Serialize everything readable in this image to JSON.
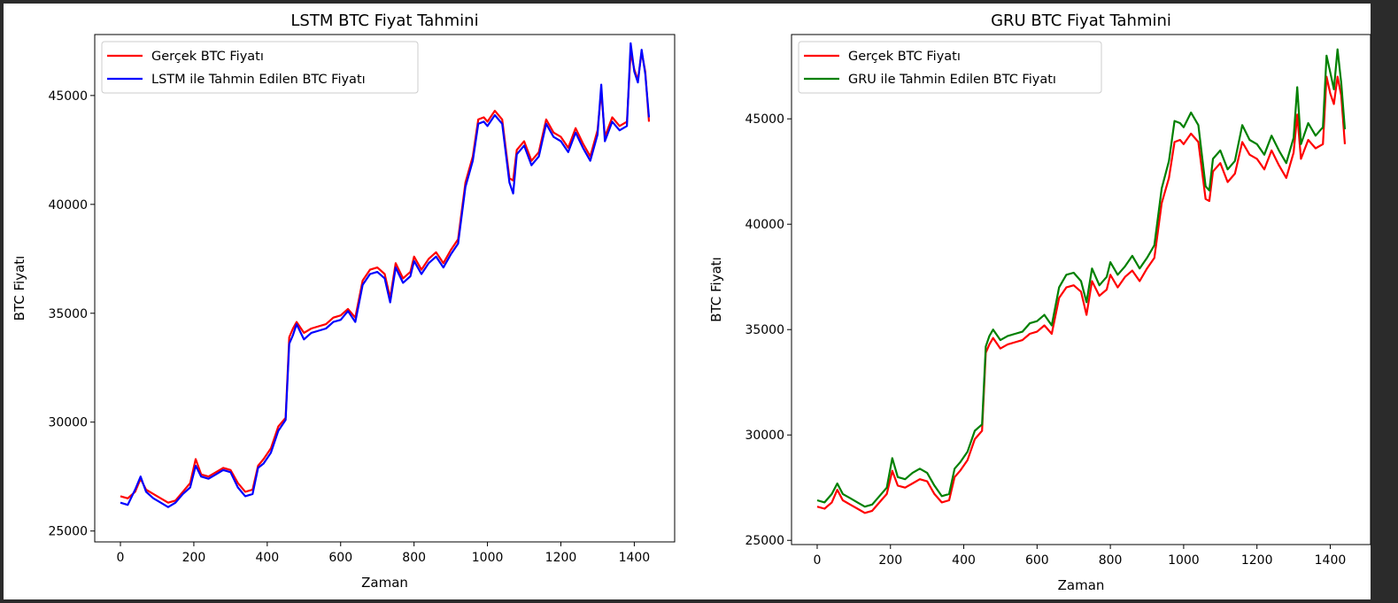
{
  "colors": {
    "actual": "#ff0000",
    "lstm": "#0000ff",
    "gru": "#008000"
  },
  "chart_data": [
    {
      "type": "line",
      "title": "LSTM BTC Fiyat Tahmini",
      "xlabel": "Zaman",
      "ylabel": "BTC Fiyatı",
      "xlim": [
        -70,
        1510
      ],
      "ylim": [
        24500,
        47800
      ],
      "xticks": [
        0,
        200,
        400,
        600,
        800,
        1000,
        1200,
        1400
      ],
      "yticks": [
        25000,
        30000,
        35000,
        40000,
        45000
      ],
      "legend": "upper-left",
      "series": [
        {
          "name": "Gerçek BTC Fiyatı",
          "color": "#ff0000"
        },
        {
          "name": "LSTM ile Tahmin Edilen BTC Fiyatı",
          "color": "#0000ff"
        }
      ],
      "x": [
        0,
        20,
        40,
        55,
        70,
        90,
        110,
        130,
        150,
        170,
        190,
        205,
        220,
        240,
        260,
        280,
        300,
        320,
        340,
        360,
        375,
        390,
        410,
        430,
        450,
        460,
        470,
        480,
        500,
        520,
        540,
        560,
        580,
        600,
        620,
        640,
        660,
        680,
        700,
        720,
        735,
        750,
        770,
        790,
        800,
        820,
        840,
        860,
        880,
        900,
        920,
        940,
        960,
        975,
        990,
        1000,
        1020,
        1040,
        1060,
        1070,
        1080,
        1100,
        1120,
        1140,
        1160,
        1180,
        1200,
        1220,
        1240,
        1260,
        1280,
        1300,
        1310,
        1320,
        1340,
        1360,
        1380,
        1390,
        1400,
        1410,
        1420,
        1430,
        1440
      ],
      "actual": [
        26600,
        26500,
        26800,
        27400,
        26900,
        26700,
        26500,
        26300,
        26400,
        26800,
        27200,
        28300,
        27600,
        27500,
        27700,
        27900,
        27800,
        27200,
        26800,
        26900,
        28000,
        28300,
        28800,
        29800,
        30200,
        33900,
        34300,
        34600,
        34100,
        34300,
        34400,
        34500,
        34800,
        34900,
        35200,
        34800,
        36500,
        37000,
        37100,
        36800,
        35700,
        37300,
        36600,
        36900,
        37600,
        37000,
        37500,
        37800,
        37300,
        37900,
        38400,
        41000,
        42200,
        43900,
        44000,
        43800,
        44300,
        43900,
        41200,
        41100,
        42500,
        42900,
        42000,
        42400,
        43900,
        43300,
        43100,
        42600,
        43500,
        42800,
        42200,
        43400,
        45200,
        43100,
        44000,
        43600,
        43800,
        47000,
        46200,
        45700,
        47000,
        46100,
        43800
      ],
      "predicted": [
        26300,
        26200,
        26900,
        27500,
        26800,
        26500,
        26300,
        26100,
        26300,
        26700,
        27000,
        28000,
        27500,
        27400,
        27600,
        27800,
        27700,
        27000,
        26600,
        26700,
        27900,
        28100,
        28600,
        29600,
        30100,
        33600,
        34000,
        34500,
        33800,
        34100,
        34200,
        34300,
        34600,
        34700,
        35100,
        34600,
        36300,
        36800,
        36900,
        36600,
        35500,
        37100,
        36400,
        36700,
        37400,
        36800,
        37300,
        37600,
        37100,
        37700,
        38200,
        40800,
        42000,
        43700,
        43800,
        43600,
        44100,
        43700,
        41000,
        40500,
        42300,
        42700,
        41800,
        42200,
        43700,
        43100,
        42900,
        42400,
        43300,
        42600,
        42000,
        43200,
        45500,
        42900,
        43800,
        43400,
        43600,
        47400,
        46100,
        45600,
        47100,
        46000,
        44000
      ]
    },
    {
      "type": "line",
      "title": "GRU BTC Fiyat Tahmini",
      "xlabel": "Zaman",
      "ylabel": "BTC Fiyatı",
      "xlim": [
        -70,
        1510
      ],
      "ylim": [
        24800,
        49000
      ],
      "xticks": [
        0,
        200,
        400,
        600,
        800,
        1000,
        1200,
        1400
      ],
      "yticks": [
        25000,
        30000,
        35000,
        40000,
        45000
      ],
      "legend": "upper-left",
      "series": [
        {
          "name": "Gerçek BTC Fiyatı",
          "color": "#ff0000"
        },
        {
          "name": "GRU ile Tahmin Edilen BTC Fiyatı",
          "color": "#008000"
        }
      ],
      "x": [
        0,
        20,
        40,
        55,
        70,
        90,
        110,
        130,
        150,
        170,
        190,
        205,
        220,
        240,
        260,
        280,
        300,
        320,
        340,
        360,
        375,
        390,
        410,
        430,
        450,
        460,
        470,
        480,
        500,
        520,
        540,
        560,
        580,
        600,
        620,
        640,
        660,
        680,
        700,
        720,
        735,
        750,
        770,
        790,
        800,
        820,
        840,
        860,
        880,
        900,
        920,
        940,
        960,
        975,
        990,
        1000,
        1020,
        1040,
        1060,
        1070,
        1080,
        1100,
        1120,
        1140,
        1160,
        1180,
        1200,
        1220,
        1240,
        1260,
        1280,
        1300,
        1310,
        1320,
        1340,
        1360,
        1380,
        1390,
        1400,
        1410,
        1420,
        1430,
        1440
      ],
      "actual": [
        26600,
        26500,
        26800,
        27400,
        26900,
        26700,
        26500,
        26300,
        26400,
        26800,
        27200,
        28300,
        27600,
        27500,
        27700,
        27900,
        27800,
        27200,
        26800,
        26900,
        28000,
        28300,
        28800,
        29800,
        30200,
        33900,
        34300,
        34600,
        34100,
        34300,
        34400,
        34500,
        34800,
        34900,
        35200,
        34800,
        36500,
        37000,
        37100,
        36800,
        35700,
        37300,
        36600,
        36900,
        37600,
        37000,
        37500,
        37800,
        37300,
        37900,
        38400,
        41000,
        42200,
        43900,
        44000,
        43800,
        44300,
        43900,
        41200,
        41100,
        42500,
        42900,
        42000,
        42400,
        43900,
        43300,
        43100,
        42600,
        43500,
        42800,
        42200,
        43400,
        45200,
        43100,
        44000,
        43600,
        43800,
        47000,
        46200,
        45700,
        47000,
        46100,
        43800
      ],
      "predicted": [
        26900,
        26800,
        27200,
        27700,
        27200,
        27000,
        26800,
        26600,
        26700,
        27100,
        27500,
        28900,
        28000,
        27900,
        28200,
        28400,
        28200,
        27600,
        27100,
        27200,
        28400,
        28700,
        29200,
        30200,
        30500,
        34200,
        34700,
        35000,
        34500,
        34700,
        34800,
        34900,
        35300,
        35400,
        35700,
        35200,
        37000,
        37600,
        37700,
        37300,
        36300,
        37900,
        37100,
        37500,
        38200,
        37600,
        38000,
        38500,
        37900,
        38400,
        39000,
        41700,
        43000,
        44900,
        44800,
        44600,
        45300,
        44700,
        41800,
        41600,
        43100,
        43500,
        42600,
        43000,
        44700,
        44000,
        43800,
        43300,
        44200,
        43500,
        42900,
        44100,
        46500,
        43800,
        44800,
        44200,
        44600,
        48000,
        47200,
        46400,
        48300,
        46700,
        44500
      ]
    }
  ]
}
